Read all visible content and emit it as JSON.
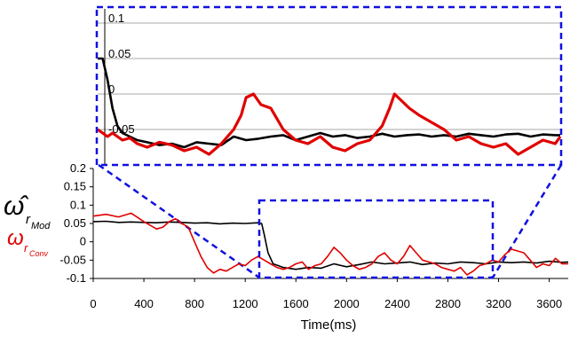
{
  "chart_data": [
    {
      "type": "line",
      "panel": "main",
      "title": "",
      "xlabel": "Time(ms)",
      "ylabel": "",
      "xlim": [
        0,
        3750
      ],
      "ylim": [
        -0.1,
        0.2
      ],
      "xticks": [
        0,
        400,
        800,
        1200,
        1600,
        2000,
        2400,
        2800,
        3200,
        3600
      ],
      "yticks": [
        -0.1,
        -0.05,
        0,
        0.05,
        0.1,
        0.15,
        0.2
      ],
      "xtick_labels": [
        "0",
        "400",
        "800",
        "1200",
        "1600",
        "2000",
        "2400",
        "2800",
        "3200",
        "3600"
      ],
      "ytick_labels": [
        "-0.1",
        "-0.05",
        "0",
        "0.05",
        "0.1",
        "0.15",
        "0.2"
      ],
      "grid": false,
      "legend": {
        "placement": "left",
        "entries": [
          {
            "label": "ω̂",
            "subscript": "r",
            "subsubscript": "Mod",
            "color": "#000000"
          },
          {
            "label": "ω",
            "subscript": "r",
            "subsubscript": "Conv",
            "color": "#e00000"
          }
        ]
      },
      "series": [
        {
          "color": "#000000",
          "x": [
            0,
            100,
            200,
            300,
            400,
            500,
            600,
            700,
            800,
            900,
            1000,
            1100,
            1200,
            1300,
            1330,
            1350,
            1380,
            1420,
            1460,
            1500,
            1600,
            1700,
            1800,
            1900,
            2000,
            2100,
            2200,
            2300,
            2400,
            2500,
            2600,
            2700,
            2800,
            2900,
            3000,
            3100,
            3200,
            3300,
            3400,
            3500,
            3600,
            3700,
            3750
          ],
          "y": [
            0.055,
            0.056,
            0.053,
            0.054,
            0.053,
            0.052,
            0.054,
            0.053,
            0.051,
            0.052,
            0.049,
            0.051,
            0.05,
            0.052,
            0.05,
            0.02,
            -0.03,
            -0.06,
            -0.065,
            -0.07,
            -0.075,
            -0.07,
            -0.072,
            -0.06,
            -0.068,
            -0.062,
            -0.055,
            -0.06,
            -0.058,
            -0.055,
            -0.062,
            -0.058,
            -0.06,
            -0.055,
            -0.057,
            -0.06,
            -0.055,
            -0.057,
            -0.055,
            -0.058,
            -0.053,
            -0.056,
            -0.055
          ]
        },
        {
          "color": "#e00000",
          "x": [
            0,
            100,
            200,
            300,
            400,
            500,
            550,
            600,
            650,
            700,
            750,
            800,
            850,
            900,
            950,
            1000,
            1050,
            1100,
            1150,
            1200,
            1250,
            1300,
            1350,
            1400,
            1450,
            1500,
            1550,
            1600,
            1650,
            1700,
            1750,
            1800,
            1850,
            1900,
            1950,
            2000,
            2050,
            2100,
            2150,
            2200,
            2250,
            2300,
            2350,
            2400,
            2450,
            2500,
            2550,
            2600,
            2650,
            2700,
            2750,
            2800,
            2850,
            2900,
            2950,
            3000,
            3050,
            3100,
            3150,
            3200,
            3250,
            3300,
            3350,
            3400,
            3450,
            3500,
            3550,
            3600,
            3650,
            3700,
            3750
          ],
          "y": [
            0.07,
            0.075,
            0.068,
            0.078,
            0.055,
            0.035,
            0.04,
            0.055,
            0.063,
            0.05,
            0.04,
            0.0,
            -0.04,
            -0.07,
            -0.085,
            -0.075,
            -0.08,
            -0.07,
            -0.06,
            -0.065,
            -0.05,
            -0.04,
            -0.05,
            -0.06,
            -0.07,
            -0.075,
            -0.07,
            -0.06,
            -0.055,
            -0.075,
            -0.065,
            -0.06,
            -0.04,
            -0.015,
            -0.03,
            -0.05,
            -0.065,
            -0.075,
            -0.07,
            -0.06,
            -0.04,
            -0.03,
            -0.05,
            -0.06,
            -0.04,
            -0.01,
            -0.03,
            -0.05,
            -0.055,
            -0.06,
            -0.07,
            -0.075,
            -0.08,
            -0.07,
            -0.09,
            -0.08,
            -0.065,
            -0.06,
            -0.05,
            -0.055,
            -0.035,
            -0.02,
            -0.025,
            -0.03,
            -0.05,
            -0.07,
            -0.06,
            -0.065,
            -0.045,
            -0.06,
            -0.06
          ]
        }
      ]
    },
    {
      "type": "line",
      "panel": "inset",
      "title": "",
      "xlabel": "",
      "ylabel": "",
      "xlim": [
        1300,
        3170
      ],
      "ylim": [
        -0.1,
        0.12
      ],
      "yticks": [
        0,
        0.05,
        0.1
      ],
      "ytick_labels": [
        "0",
        "0.05",
        "0.1"
      ],
      "grid": false,
      "series": [
        {
          "color": "#000000",
          "x": [
            1300,
            1320,
            1340,
            1360,
            1380,
            1400,
            1430,
            1460,
            1500,
            1550,
            1600,
            1650,
            1700,
            1750,
            1800,
            1850,
            1900,
            1950,
            2000,
            2050,
            2100,
            2150,
            2200,
            2250,
            2300,
            2350,
            2400,
            2450,
            2500,
            2550,
            2600,
            2650,
            2700,
            2750,
            2800,
            2850,
            2900,
            2950,
            3000,
            3050,
            3100,
            3150,
            3170
          ],
          "y": [
            0.05,
            0.05,
            0.02,
            -0.02,
            -0.045,
            -0.055,
            -0.06,
            -0.065,
            -0.068,
            -0.072,
            -0.07,
            -0.075,
            -0.068,
            -0.07,
            -0.072,
            -0.06,
            -0.065,
            -0.063,
            -0.06,
            -0.058,
            -0.065,
            -0.06,
            -0.055,
            -0.06,
            -0.058,
            -0.062,
            -0.06,
            -0.056,
            -0.06,
            -0.058,
            -0.057,
            -0.06,
            -0.058,
            -0.06,
            -0.056,
            -0.058,
            -0.06,
            -0.057,
            -0.056,
            -0.06,
            -0.057,
            -0.058,
            -0.058
          ]
        },
        {
          "color": "#e00000",
          "x": [
            1300,
            1320,
            1340,
            1360,
            1380,
            1400,
            1430,
            1460,
            1500,
            1550,
            1600,
            1650,
            1700,
            1750,
            1800,
            1850,
            1880,
            1900,
            1930,
            1960,
            2000,
            2050,
            2100,
            2150,
            2200,
            2250,
            2300,
            2350,
            2400,
            2450,
            2480,
            2500,
            2530,
            2560,
            2600,
            2650,
            2700,
            2750,
            2800,
            2850,
            2900,
            2950,
            3000,
            3050,
            3100,
            3150,
            3170
          ],
          "y": [
            -0.05,
            -0.055,
            -0.06,
            -0.055,
            -0.06,
            -0.065,
            -0.062,
            -0.07,
            -0.075,
            -0.068,
            -0.072,
            -0.08,
            -0.075,
            -0.085,
            -0.07,
            -0.05,
            -0.03,
            -0.005,
            0.0,
            -0.015,
            -0.02,
            -0.05,
            -0.065,
            -0.07,
            -0.06,
            -0.075,
            -0.08,
            -0.07,
            -0.065,
            -0.045,
            -0.02,
            0.0,
            -0.01,
            -0.02,
            -0.03,
            -0.04,
            -0.05,
            -0.065,
            -0.06,
            -0.07,
            -0.075,
            -0.07,
            -0.085,
            -0.075,
            -0.065,
            -0.07,
            -0.06
          ]
        }
      ]
    }
  ],
  "colors": {
    "zoom_box": "#1010e0",
    "axis": "#000000",
    "inset_grid": "#bbbbbb"
  }
}
